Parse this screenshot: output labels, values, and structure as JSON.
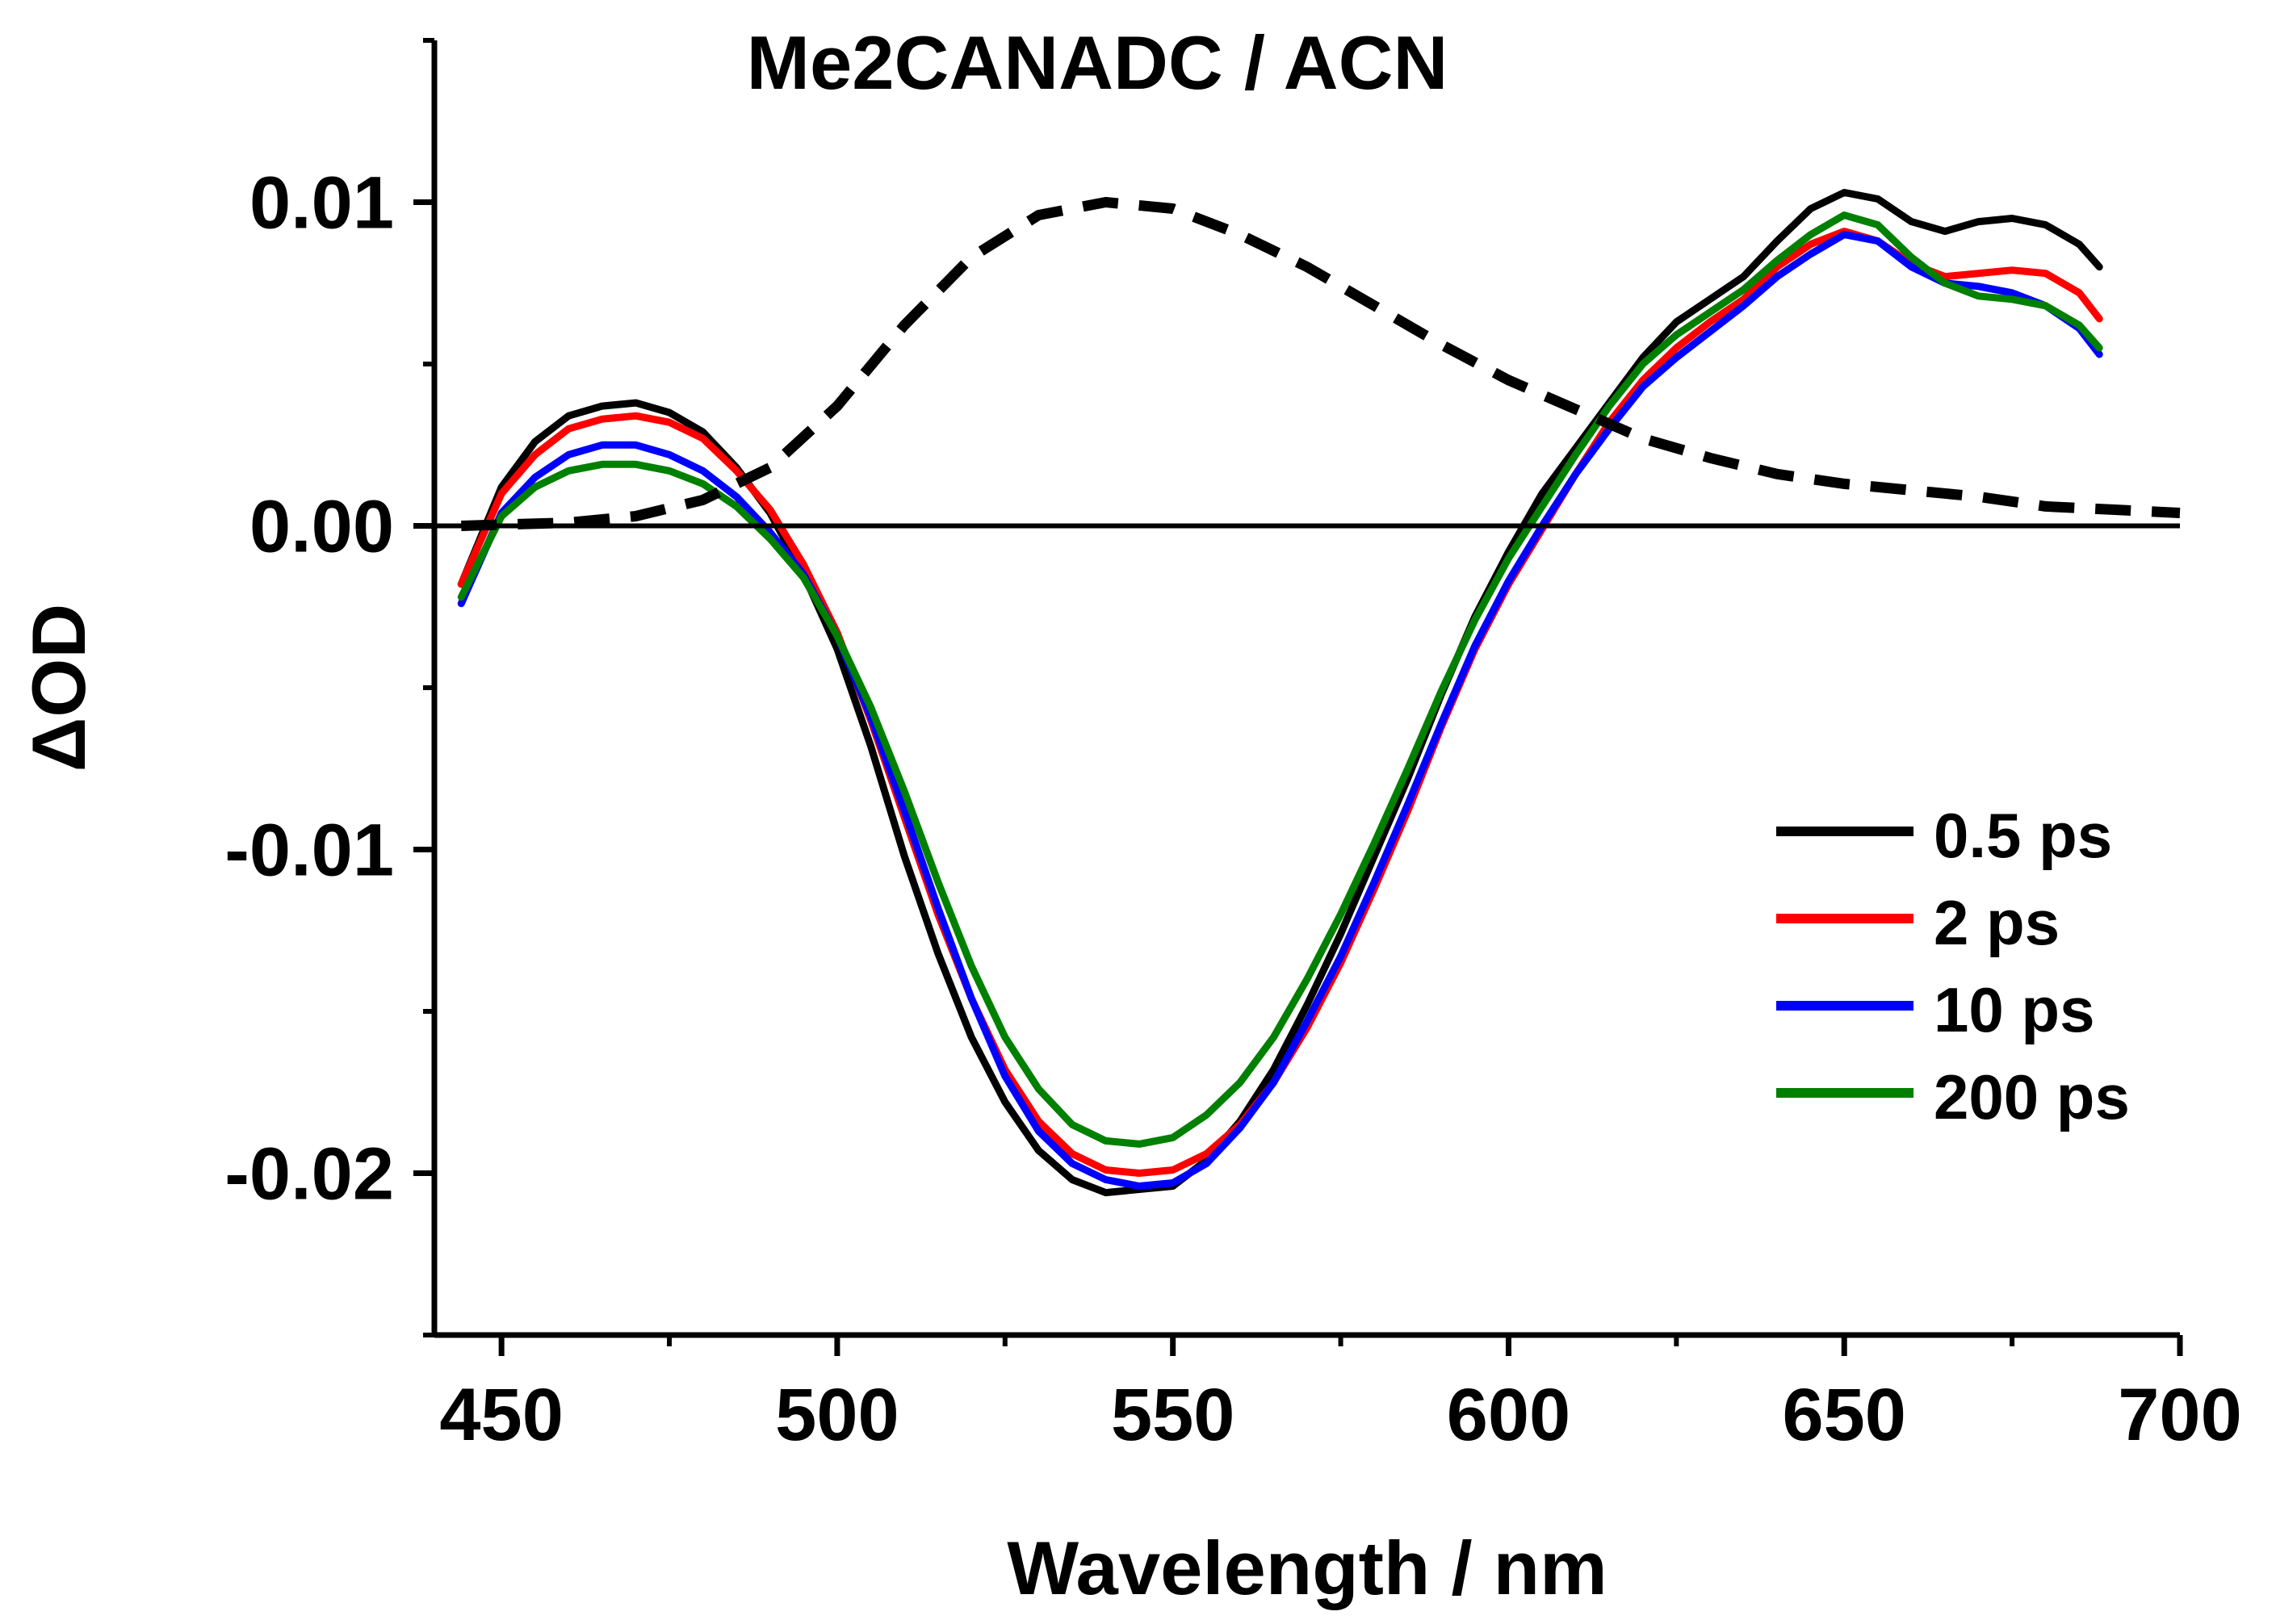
{
  "chart_data": {
    "type": "line",
    "title": "Me2CANADC / ACN",
    "xlabel": "Wavelength / nm",
    "ylabel": "ΔOD",
    "xlim": [
      440,
      700
    ],
    "ylim": [
      -0.025,
      0.015
    ],
    "xticks": [
      450,
      500,
      550,
      600,
      650,
      700
    ],
    "xtick_labels": [
      "450",
      "500",
      "550",
      "600",
      "650",
      "700"
    ],
    "yticks": [
      0.01,
      0.0,
      -0.01,
      -0.02
    ],
    "ytick_labels": [
      "0.01",
      "0.00",
      "-0.01",
      "-0.02"
    ],
    "zero_line": 0,
    "grid": false,
    "legend_position": "right",
    "series": [
      {
        "name": "0.5 ps",
        "color": "#000000",
        "points": [
          [
            444,
            -0.0018
          ],
          [
            450,
            0.0012
          ],
          [
            455,
            0.0026
          ],
          [
            460,
            0.0034
          ],
          [
            465,
            0.0037
          ],
          [
            470,
            0.0038
          ],
          [
            475,
            0.0035
          ],
          [
            480,
            0.0029
          ],
          [
            485,
            0.0018
          ],
          [
            490,
            0.0004
          ],
          [
            495,
            -0.0015
          ],
          [
            500,
            -0.0038
          ],
          [
            505,
            -0.0068
          ],
          [
            510,
            -0.0102
          ],
          [
            515,
            -0.0132
          ],
          [
            520,
            -0.0158
          ],
          [
            525,
            -0.0178
          ],
          [
            530,
            -0.0193
          ],
          [
            535,
            -0.0202
          ],
          [
            540,
            -0.0206
          ],
          [
            545,
            -0.0205
          ],
          [
            550,
            -0.0204
          ],
          [
            555,
            -0.0196
          ],
          [
            560,
            -0.0184
          ],
          [
            565,
            -0.0168
          ],
          [
            570,
            -0.0148
          ],
          [
            575,
            -0.0126
          ],
          [
            580,
            -0.0102
          ],
          [
            585,
            -0.0078
          ],
          [
            590,
            -0.0052
          ],
          [
            595,
            -0.0028
          ],
          [
            600,
            -0.0008
          ],
          [
            605,
            0.001
          ],
          [
            610,
            0.0024
          ],
          [
            615,
            0.0038
          ],
          [
            620,
            0.0052
          ],
          [
            625,
            0.0063
          ],
          [
            630,
            0.007
          ],
          [
            635,
            0.0077
          ],
          [
            640,
            0.0088
          ],
          [
            645,
            0.0098
          ],
          [
            650,
            0.0103
          ],
          [
            655,
            0.0101
          ],
          [
            660,
            0.0094
          ],
          [
            665,
            0.0091
          ],
          [
            670,
            0.0094
          ],
          [
            675,
            0.0095
          ],
          [
            680,
            0.0093
          ],
          [
            685,
            0.0087
          ],
          [
            688,
            0.008
          ]
        ]
      },
      {
        "name": "2 ps",
        "color": "#ff0000",
        "points": [
          [
            444,
            -0.0018
          ],
          [
            450,
            0.001
          ],
          [
            455,
            0.0022
          ],
          [
            460,
            0.003
          ],
          [
            465,
            0.0033
          ],
          [
            470,
            0.0034
          ],
          [
            475,
            0.0032
          ],
          [
            480,
            0.0027
          ],
          [
            485,
            0.0017
          ],
          [
            490,
            0.0005
          ],
          [
            495,
            -0.0012
          ],
          [
            500,
            -0.0033
          ],
          [
            505,
            -0.006
          ],
          [
            510,
            -0.009
          ],
          [
            515,
            -0.012
          ],
          [
            520,
            -0.0146
          ],
          [
            525,
            -0.0168
          ],
          [
            530,
            -0.0184
          ],
          [
            535,
            -0.0194
          ],
          [
            540,
            -0.0199
          ],
          [
            545,
            -0.02
          ],
          [
            550,
            -0.0199
          ],
          [
            555,
            -0.0194
          ],
          [
            560,
            -0.0185
          ],
          [
            565,
            -0.0172
          ],
          [
            570,
            -0.0155
          ],
          [
            575,
            -0.0135
          ],
          [
            580,
            -0.0112
          ],
          [
            585,
            -0.0088
          ],
          [
            590,
            -0.0062
          ],
          [
            595,
            -0.0038
          ],
          [
            600,
            -0.0018
          ],
          [
            605,
            -0.0001
          ],
          [
            610,
            0.0016
          ],
          [
            615,
            0.0032
          ],
          [
            620,
            0.0045
          ],
          [
            625,
            0.0055
          ],
          [
            630,
            0.0063
          ],
          [
            635,
            0.007
          ],
          [
            640,
            0.008
          ],
          [
            645,
            0.0087
          ],
          [
            650,
            0.0091
          ],
          [
            655,
            0.0088
          ],
          [
            660,
            0.0081
          ],
          [
            665,
            0.0077
          ],
          [
            670,
            0.0078
          ],
          [
            675,
            0.0079
          ],
          [
            680,
            0.0078
          ],
          [
            685,
            0.0072
          ],
          [
            688,
            0.0064
          ]
        ]
      },
      {
        "name": "10 ps",
        "color": "#0000ff",
        "points": [
          [
            444,
            -0.0024
          ],
          [
            450,
            0.0004
          ],
          [
            455,
            0.0015
          ],
          [
            460,
            0.0022
          ],
          [
            465,
            0.0025
          ],
          [
            470,
            0.0025
          ],
          [
            475,
            0.0022
          ],
          [
            480,
            0.0017
          ],
          [
            485,
            0.0009
          ],
          [
            490,
            -0.0002
          ],
          [
            495,
            -0.0015
          ],
          [
            500,
            -0.0034
          ],
          [
            505,
            -0.0059
          ],
          [
            510,
            -0.0088
          ],
          [
            515,
            -0.0118
          ],
          [
            520,
            -0.0146
          ],
          [
            525,
            -0.017
          ],
          [
            530,
            -0.0187
          ],
          [
            535,
            -0.0197
          ],
          [
            540,
            -0.0202
          ],
          [
            545,
            -0.0204
          ],
          [
            550,
            -0.0203
          ],
          [
            555,
            -0.0197
          ],
          [
            560,
            -0.0186
          ],
          [
            565,
            -0.0172
          ],
          [
            570,
            -0.0153
          ],
          [
            575,
            -0.0133
          ],
          [
            580,
            -0.011
          ],
          [
            585,
            -0.0086
          ],
          [
            590,
            -0.0061
          ],
          [
            595,
            -0.0037
          ],
          [
            600,
            -0.0017
          ],
          [
            605,
            0.0
          ],
          [
            610,
            0.0016
          ],
          [
            615,
            0.003
          ],
          [
            620,
            0.0043
          ],
          [
            625,
            0.0052
          ],
          [
            630,
            0.006
          ],
          [
            635,
            0.0068
          ],
          [
            640,
            0.0077
          ],
          [
            645,
            0.0084
          ],
          [
            650,
            0.009
          ],
          [
            655,
            0.0088
          ],
          [
            660,
            0.008
          ],
          [
            665,
            0.0075
          ],
          [
            670,
            0.0074
          ],
          [
            675,
            0.0072
          ],
          [
            680,
            0.0068
          ],
          [
            685,
            0.0061
          ],
          [
            688,
            0.0053
          ]
        ]
      },
      {
        "name": "200 ps",
        "color": "#008000",
        "points": [
          [
            444,
            -0.0022
          ],
          [
            450,
            0.0003
          ],
          [
            455,
            0.0012
          ],
          [
            460,
            0.0017
          ],
          [
            465,
            0.0019
          ],
          [
            470,
            0.0019
          ],
          [
            475,
            0.0017
          ],
          [
            480,
            0.0013
          ],
          [
            485,
            0.0006
          ],
          [
            490,
            -0.0004
          ],
          [
            495,
            -0.0016
          ],
          [
            500,
            -0.0034
          ],
          [
            505,
            -0.0056
          ],
          [
            510,
            -0.0082
          ],
          [
            515,
            -0.011
          ],
          [
            520,
            -0.0136
          ],
          [
            525,
            -0.0158
          ],
          [
            530,
            -0.0174
          ],
          [
            535,
            -0.0185
          ],
          [
            540,
            -0.019
          ],
          [
            545,
            -0.0191
          ],
          [
            550,
            -0.0189
          ],
          [
            555,
            -0.0182
          ],
          [
            560,
            -0.0172
          ],
          [
            565,
            -0.0158
          ],
          [
            570,
            -0.014
          ],
          [
            575,
            -0.012
          ],
          [
            580,
            -0.0098
          ],
          [
            585,
            -0.0075
          ],
          [
            590,
            -0.0051
          ],
          [
            595,
            -0.0029
          ],
          [
            600,
            -0.001
          ],
          [
            605,
            0.0006
          ],
          [
            610,
            0.0022
          ],
          [
            615,
            0.0037
          ],
          [
            620,
            0.005
          ],
          [
            625,
            0.0059
          ],
          [
            630,
            0.0066
          ],
          [
            635,
            0.0073
          ],
          [
            640,
            0.0082
          ],
          [
            645,
            0.009
          ],
          [
            650,
            0.0096
          ],
          [
            655,
            0.0093
          ],
          [
            660,
            0.0083
          ],
          [
            665,
            0.0075
          ],
          [
            670,
            0.0071
          ],
          [
            675,
            0.007
          ],
          [
            680,
            0.0068
          ],
          [
            685,
            0.0062
          ],
          [
            688,
            0.0055
          ]
        ]
      },
      {
        "color": "#000000",
        "dashed": true,
        "points": [
          [
            444,
            0.0
          ],
          [
            460,
            0.0001
          ],
          [
            470,
            0.0003
          ],
          [
            480,
            0.0008
          ],
          [
            490,
            0.0018
          ],
          [
            500,
            0.0037
          ],
          [
            510,
            0.0062
          ],
          [
            520,
            0.0083
          ],
          [
            530,
            0.0096
          ],
          [
            540,
            0.01
          ],
          [
            550,
            0.0098
          ],
          [
            560,
            0.009
          ],
          [
            570,
            0.008
          ],
          [
            580,
            0.0068
          ],
          [
            590,
            0.0056
          ],
          [
            600,
            0.0045
          ],
          [
            610,
            0.0036
          ],
          [
            620,
            0.0027
          ],
          [
            630,
            0.0021
          ],
          [
            640,
            0.0016
          ],
          [
            650,
            0.0013
          ],
          [
            660,
            0.0011
          ],
          [
            670,
            0.0009
          ],
          [
            680,
            0.0006
          ],
          [
            690,
            0.0005
          ],
          [
            700,
            0.0004
          ]
        ]
      }
    ]
  }
}
